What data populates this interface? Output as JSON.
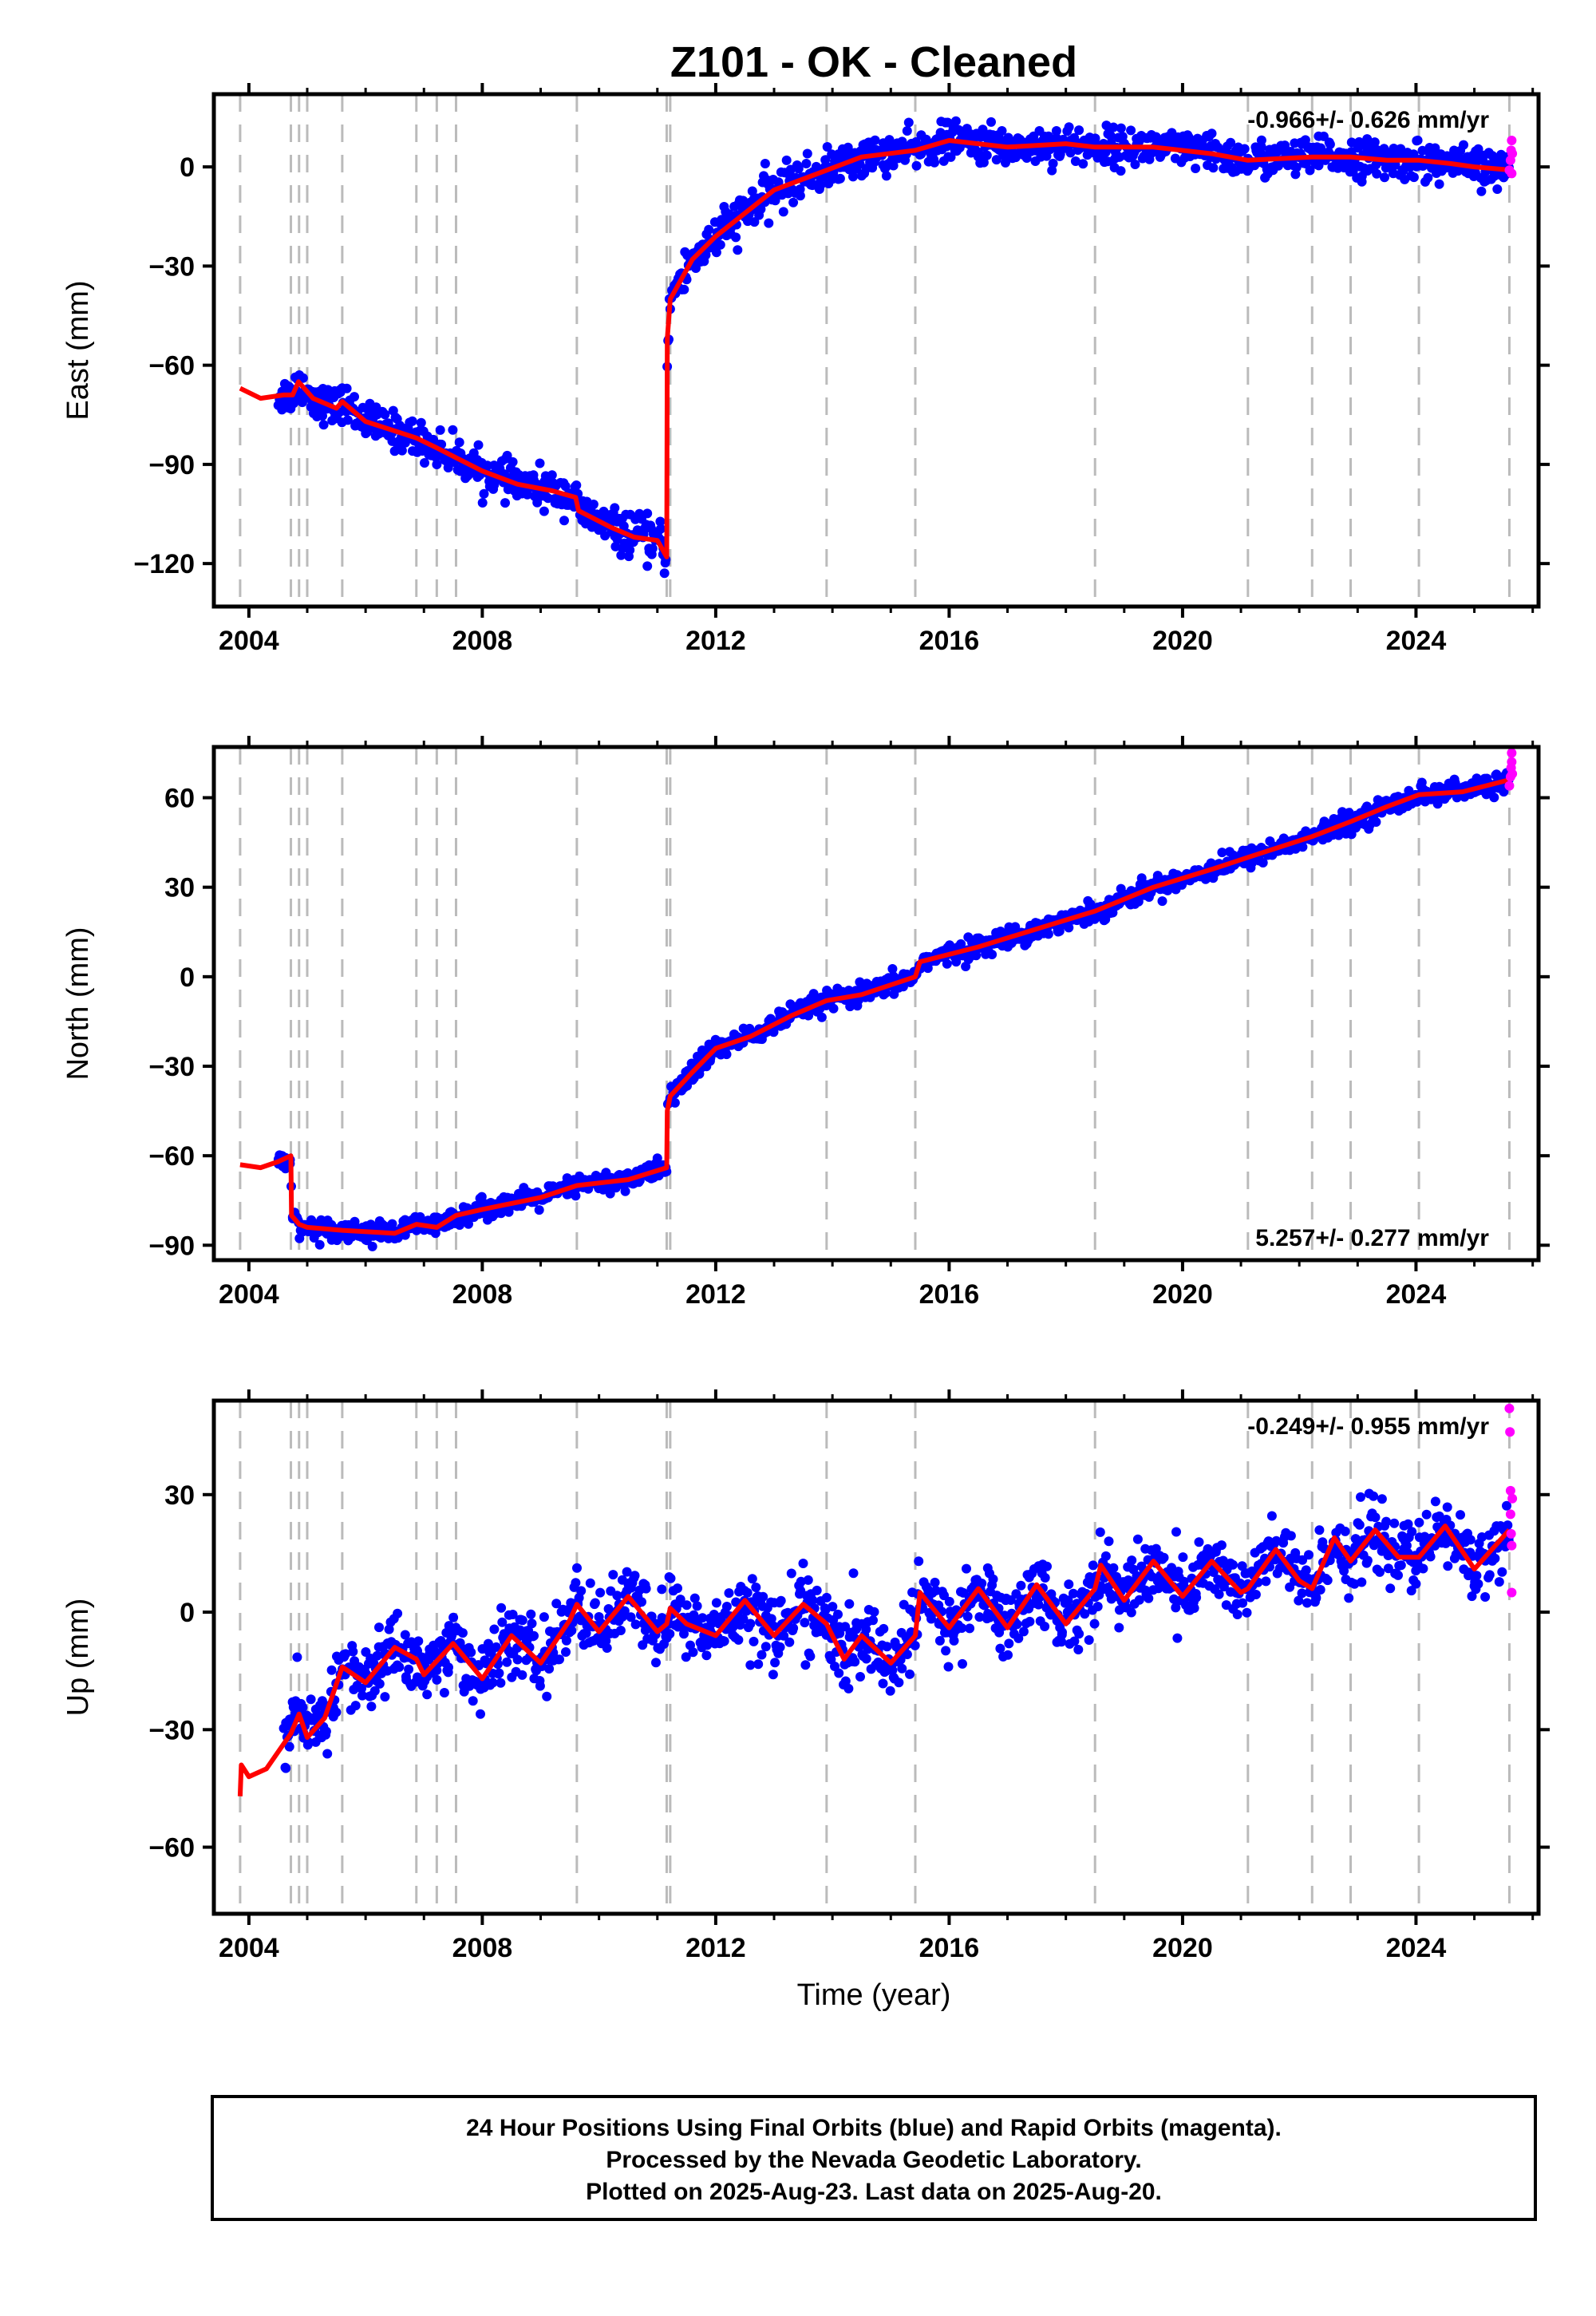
{
  "title": "Z101  - OK - Cleaned",
  "xlabel": "Time (year)",
  "footer": {
    "lines": [
      "24 Hour Positions Using Final Orbits (blue) and Rapid Orbits (magenta).",
      "Processed by the Nevada Geodetic Laboratory.",
      "Plotted on 2025-Aug-23. Last data on 2025-Aug-20."
    ]
  },
  "colors": {
    "final": "#0000ff",
    "rapid": "#ff00ff",
    "model": "#ff0000",
    "event_lines": "#bbbbbb"
  },
  "chart_data": [
    {
      "type": "scatter",
      "component": "east",
      "ylabel": "East (mm)",
      "xlim": [
        2003.4,
        2026.1
      ],
      "ylim": [
        -133,
        22
      ],
      "xticks": [
        2004,
        2008,
        2012,
        2016,
        2020,
        2024
      ],
      "yticks": [
        -120,
        -90,
        -60,
        -30,
        0
      ],
      "rate_text": "-0.966+/- 0.626 mm/yr",
      "rate_position": "top-right",
      "event_lines": [
        2003.85,
        2004.72,
        2004.86,
        2005.0,
        2005.6,
        2006.87,
        2007.22,
        2007.55,
        2009.62,
        2011.16,
        2011.22,
        2013.9,
        2015.42,
        2018.5,
        2021.12,
        2022.22,
        2022.88,
        2024.05,
        2025.6
      ],
      "model_points": [
        [
          2003.85,
          -67
        ],
        [
          2004.2,
          -70
        ],
        [
          2004.6,
          -69
        ],
        [
          2004.75,
          -69
        ],
        [
          2004.85,
          -65
        ],
        [
          2005.1,
          -70
        ],
        [
          2005.5,
          -73
        ],
        [
          2005.6,
          -71
        ],
        [
          2006.0,
          -77
        ],
        [
          2006.87,
          -82
        ],
        [
          2007.22,
          -85
        ],
        [
          2007.55,
          -88
        ],
        [
          2008.0,
          -92
        ],
        [
          2008.6,
          -96
        ],
        [
          2009.2,
          -98
        ],
        [
          2009.6,
          -100
        ],
        [
          2009.65,
          -104
        ],
        [
          2010.2,
          -109
        ],
        [
          2010.6,
          -112
        ],
        [
          2011.0,
          -113
        ],
        [
          2011.16,
          -118
        ],
        [
          2011.17,
          -52
        ],
        [
          2011.22,
          -40
        ],
        [
          2011.6,
          -28
        ],
        [
          2012.0,
          -21
        ],
        [
          2012.5,
          -14
        ],
        [
          2013.0,
          -7
        ],
        [
          2013.9,
          -1
        ],
        [
          2014.5,
          3
        ],
        [
          2015.42,
          5
        ],
        [
          2016.0,
          8
        ],
        [
          2017.0,
          6
        ],
        [
          2018.0,
          7
        ],
        [
          2018.5,
          6
        ],
        [
          2019.5,
          6
        ],
        [
          2020.5,
          4
        ],
        [
          2021.12,
          2
        ],
        [
          2022.22,
          3
        ],
        [
          2022.88,
          3
        ],
        [
          2023.5,
          2
        ],
        [
          2024.05,
          2
        ],
        [
          2024.6,
          1
        ],
        [
          2025.0,
          0
        ],
        [
          2025.65,
          -1
        ]
      ],
      "scatter_bands": [
        [
          2004.5,
          -70,
          5
        ],
        [
          2005.0,
          -72,
          5
        ],
        [
          2006.0,
          -78,
          5
        ],
        [
          2007.0,
          -84,
          5
        ],
        [
          2008.0,
          -92,
          5
        ],
        [
          2009.0,
          -99,
          5
        ],
        [
          2010.0,
          -106,
          5
        ],
        [
          2011.0,
          -114,
          6
        ],
        [
          2011.3,
          -35,
          6
        ],
        [
          2011.6,
          -27,
          6
        ],
        [
          2012.0,
          -20,
          6
        ],
        [
          2013.0,
          -6,
          6
        ],
        [
          2014.0,
          1,
          5
        ],
        [
          2015.0,
          4,
          5
        ],
        [
          2016.0,
          7,
          5
        ],
        [
          2018.0,
          7,
          5
        ],
        [
          2020.0,
          5,
          5
        ],
        [
          2022.0,
          3,
          5
        ],
        [
          2024.0,
          2,
          5
        ],
        [
          2025.6,
          0,
          5
        ]
      ],
      "rapid_points": [
        [
          2025.6,
          -1
        ],
        [
          2025.62,
          2
        ],
        [
          2025.63,
          5
        ],
        [
          2025.64,
          8
        ],
        [
          2025.64,
          -2
        ],
        [
          2025.65,
          4
        ]
      ]
    },
    {
      "type": "scatter",
      "component": "north",
      "ylabel": "North (mm)",
      "xlim": [
        2003.4,
        2026.1
      ],
      "ylim": [
        -95,
        77
      ],
      "xticks": [
        2004,
        2008,
        2012,
        2016,
        2020,
        2024
      ],
      "yticks": [
        -90,
        -60,
        -30,
        0,
        30,
        60
      ],
      "rate_text": "5.257+/- 0.277 mm/yr",
      "rate_position": "bottom-right",
      "event_lines": [
        2003.85,
        2004.72,
        2004.86,
        2005.0,
        2005.6,
        2006.87,
        2007.22,
        2007.55,
        2009.62,
        2011.16,
        2011.22,
        2013.9,
        2015.42,
        2018.5,
        2021.12,
        2022.22,
        2022.88,
        2024.05,
        2025.6
      ],
      "model_points": [
        [
          2003.85,
          -63
        ],
        [
          2004.2,
          -64
        ],
        [
          2004.5,
          -62
        ],
        [
          2004.72,
          -60
        ],
        [
          2004.73,
          -80
        ],
        [
          2004.86,
          -83
        ],
        [
          2005.0,
          -84
        ],
        [
          2005.6,
          -85
        ],
        [
          2006.5,
          -86
        ],
        [
          2006.87,
          -83
        ],
        [
          2007.22,
          -84
        ],
        [
          2007.55,
          -80
        ],
        [
          2008.0,
          -78
        ],
        [
          2009.0,
          -74
        ],
        [
          2009.62,
          -70
        ],
        [
          2010.5,
          -68
        ],
        [
          2011.16,
          -64
        ],
        [
          2011.17,
          -45
        ],
        [
          2011.22,
          -40
        ],
        [
          2011.6,
          -32
        ],
        [
          2012.0,
          -24
        ],
        [
          2012.6,
          -20
        ],
        [
          2013.3,
          -13
        ],
        [
          2013.9,
          -8
        ],
        [
          2014.5,
          -6
        ],
        [
          2015.42,
          0
        ],
        [
          2015.5,
          5
        ],
        [
          2016.5,
          10
        ],
        [
          2017.5,
          16
        ],
        [
          2018.5,
          22
        ],
        [
          2019.5,
          30
        ],
        [
          2020.5,
          36
        ],
        [
          2021.12,
          40
        ],
        [
          2022.22,
          47
        ],
        [
          2022.88,
          52
        ],
        [
          2023.5,
          57
        ],
        [
          2024.05,
          61
        ],
        [
          2024.8,
          62
        ],
        [
          2025.6,
          66
        ]
      ],
      "scatter_bands": [
        [
          2004.5,
          -62,
          3
        ],
        [
          2005.5,
          -85,
          3
        ],
        [
          2007.0,
          -83,
          3
        ],
        [
          2008.5,
          -76,
          3
        ],
        [
          2010.0,
          -70,
          3
        ],
        [
          2011.1,
          -65,
          3
        ],
        [
          2011.5,
          -33,
          4
        ],
        [
          2012.5,
          -20,
          3
        ],
        [
          2014.0,
          -7,
          3
        ],
        [
          2015.5,
          3,
          3
        ],
        [
          2017.0,
          13,
          3
        ],
        [
          2018.5,
          22,
          3
        ],
        [
          2020.0,
          33,
          3
        ],
        [
          2021.5,
          42,
          3
        ],
        [
          2022.5,
          50,
          3
        ],
        [
          2023.5,
          56,
          3
        ],
        [
          2024.5,
          61,
          3
        ],
        [
          2025.6,
          65,
          3
        ]
      ],
      "rapid_points": [
        [
          2025.6,
          64
        ],
        [
          2025.62,
          67
        ],
        [
          2025.63,
          70
        ],
        [
          2025.64,
          72
        ],
        [
          2025.64,
          75
        ],
        [
          2025.65,
          68
        ]
      ]
    },
    {
      "type": "scatter",
      "component": "up",
      "ylabel": "Up (mm)",
      "xlim": [
        2003.4,
        2026.1
      ],
      "ylim": [
        -77,
        54
      ],
      "xticks": [
        2004,
        2008,
        2012,
        2016,
        2020,
        2024
      ],
      "yticks": [
        -60,
        -30,
        0,
        30
      ],
      "rate_text": "-0.249+/- 0.955 mm/yr",
      "rate_position": "top-right",
      "event_lines": [
        2003.85,
        2004.72,
        2004.86,
        2005.0,
        2005.6,
        2006.87,
        2007.22,
        2007.55,
        2009.62,
        2011.16,
        2011.22,
        2013.9,
        2015.42,
        2018.5,
        2021.12,
        2022.22,
        2022.88,
        2024.05,
        2025.6
      ],
      "model_points": [
        [
          2003.85,
          -47
        ],
        [
          2003.87,
          -39
        ],
        [
          2004.0,
          -42
        ],
        [
          2004.3,
          -40
        ],
        [
          2004.72,
          -31
        ],
        [
          2004.86,
          -26
        ],
        [
          2005.0,
          -32
        ],
        [
          2005.3,
          -27
        ],
        [
          2005.6,
          -14
        ],
        [
          2006.0,
          -18
        ],
        [
          2006.5,
          -9
        ],
        [
          2006.87,
          -12
        ],
        [
          2007.0,
          -16
        ],
        [
          2007.5,
          -8
        ],
        [
          2008.0,
          -17
        ],
        [
          2008.5,
          -6
        ],
        [
          2009.0,
          -13
        ],
        [
          2009.5,
          -2
        ],
        [
          2009.62,
          2
        ],
        [
          2010.0,
          -5
        ],
        [
          2010.5,
          4
        ],
        [
          2011.0,
          -5
        ],
        [
          2011.16,
          -3
        ],
        [
          2011.22,
          1
        ],
        [
          2011.5,
          -3
        ],
        [
          2012.0,
          -6
        ],
        [
          2012.5,
          3
        ],
        [
          2013.0,
          -6
        ],
        [
          2013.5,
          2
        ],
        [
          2013.9,
          -3
        ],
        [
          2014.2,
          -12
        ],
        [
          2014.5,
          -6
        ],
        [
          2015.0,
          -13
        ],
        [
          2015.42,
          -6
        ],
        [
          2015.5,
          5
        ],
        [
          2016.0,
          -4
        ],
        [
          2016.5,
          6
        ],
        [
          2017.0,
          -4
        ],
        [
          2017.5,
          7
        ],
        [
          2018.0,
          -3
        ],
        [
          2018.5,
          6
        ],
        [
          2018.6,
          12
        ],
        [
          2019.0,
          3
        ],
        [
          2019.5,
          13
        ],
        [
          2020.0,
          4
        ],
        [
          2020.5,
          13
        ],
        [
          2021.0,
          5
        ],
        [
          2021.12,
          6
        ],
        [
          2021.6,
          16
        ],
        [
          2022.0,
          8
        ],
        [
          2022.22,
          6
        ],
        [
          2022.6,
          19
        ],
        [
          2022.88,
          13
        ],
        [
          2023.3,
          21
        ],
        [
          2023.7,
          14
        ],
        [
          2024.05,
          14
        ],
        [
          2024.5,
          22
        ],
        [
          2025.0,
          11
        ],
        [
          2025.6,
          21
        ]
      ],
      "scatter_bands": [
        [
          2004.6,
          -35,
          8
        ],
        [
          2005.5,
          -20,
          8
        ],
        [
          2007.0,
          -13,
          8
        ],
        [
          2008.5,
          -10,
          8
        ],
        [
          2010.0,
          -1,
          8
        ],
        [
          2011.5,
          0,
          8
        ],
        [
          2013.0,
          -4,
          9
        ],
        [
          2014.5,
          -8,
          9
        ],
        [
          2016.0,
          0,
          8
        ],
        [
          2017.5,
          2,
          8
        ],
        [
          2019.0,
          7,
          8
        ],
        [
          2020.5,
          8,
          8
        ],
        [
          2022.0,
          11,
          8
        ],
        [
          2023.5,
          17,
          8
        ],
        [
          2024.5,
          16,
          8
        ],
        [
          2025.6,
          16,
          8
        ]
      ],
      "rapid_points": [
        [
          2025.6,
          52
        ],
        [
          2025.61,
          46
        ],
        [
          2025.62,
          31
        ],
        [
          2025.62,
          25
        ],
        [
          2025.63,
          20
        ],
        [
          2025.64,
          17
        ],
        [
          2025.64,
          5
        ],
        [
          2025.65,
          29
        ]
      ]
    }
  ]
}
